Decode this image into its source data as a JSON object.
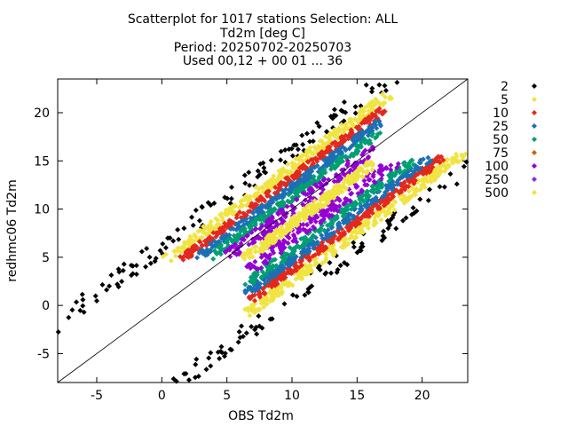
{
  "chart_data": {
    "type": "scatter",
    "title_lines": [
      "Scatterplot for 1017 stations Selection: ALL",
      "Td2m [deg C]",
      "Period: 20250702-20250703",
      "Used 00,12 + 00 01 ... 36"
    ],
    "xlabel": "OBS Td2m",
    "ylabel": "redhmc06 Td2m",
    "xlim": [
      -8,
      23.5
    ],
    "ylim": [
      -8,
      23.5
    ],
    "xticks": [
      -5,
      0,
      5,
      10,
      15,
      20
    ],
    "yticks": [
      -5,
      0,
      5,
      10,
      15,
      20
    ],
    "grid": false,
    "diagonal_line": true,
    "legend_position": "right, outside plot",
    "legend": [
      {
        "label": "2",
        "color": "#000000"
      },
      {
        "label": "5",
        "color": "#f0e442"
      },
      {
        "label": "10",
        "color": "#e3281e"
      },
      {
        "label": "25",
        "color": "#1c6fb4"
      },
      {
        "label": "50",
        "color": "#009e73"
      },
      {
        "label": "75",
        "color": "#d55e00"
      },
      {
        "label": "100",
        "color": "#9400d3"
      },
      {
        "label": "250",
        "color": "#8a2be2"
      },
      {
        "label": "500",
        "color": "#f0e442"
      }
    ],
    "density_bands": [
      {
        "count_class": "2",
        "color": "#000000",
        "halfwidth": 7.5
      },
      {
        "count_class": "5",
        "color": "#f0e442",
        "halfwidth": 4.6
      },
      {
        "count_class": "10",
        "color": "#e3281e",
        "halfwidth": 3.7
      },
      {
        "count_class": "25",
        "color": "#1c6fb4",
        "halfwidth": 3.0
      },
      {
        "count_class": "50",
        "color": "#009e73",
        "halfwidth": 2.3
      },
      {
        "count_class": "100",
        "color": "#9400d3",
        "halfwidth": 1.6
      },
      {
        "count_class": "500",
        "color": "#f0e442",
        "halfwidth": 0.45
      }
    ]
  }
}
